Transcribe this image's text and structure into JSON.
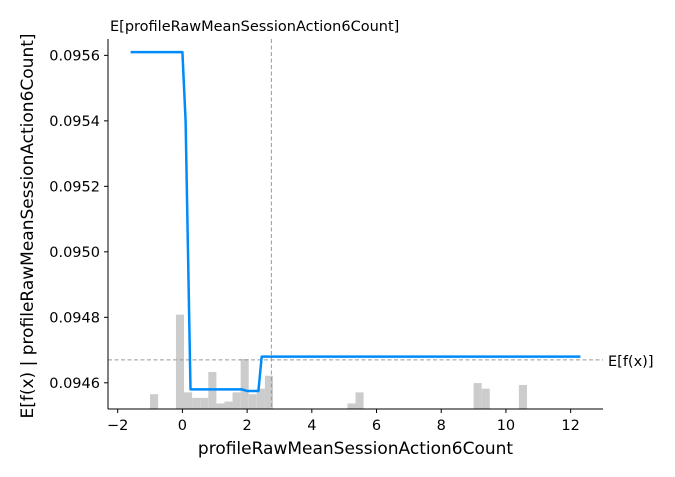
{
  "chart_data": {
    "type": "line",
    "xlabel": "profileRawMeanSessionAction6Count",
    "ylabel": "E[f(x) | profileRawMeanSessionAction6Count]",
    "xlim": [
      -2.3,
      13.0
    ],
    "ylim": [
      0.09452,
      0.09565
    ],
    "x_ticks": [
      -2,
      0,
      2,
      4,
      6,
      8,
      10,
      12
    ],
    "x_tick_labels": [
      "−2",
      "0",
      "2",
      "4",
      "6",
      "8",
      "10",
      "12"
    ],
    "y_ticks": [
      0.0946,
      0.0948,
      0.095,
      0.0952,
      0.0954,
      0.0956
    ],
    "y_tick_labels": [
      "0.0946",
      "0.0948",
      "0.0950",
      "0.0952",
      "0.0954",
      "0.0956"
    ],
    "series": [
      {
        "x": [
          -1.6,
          0.0,
          0.1,
          0.25,
          0.45,
          1.5,
          1.85,
          2.0,
          2.35,
          2.45,
          2.6,
          12.3
        ],
        "y": [
          0.09561,
          0.09561,
          0.0954,
          0.09458,
          0.09458,
          0.09458,
          0.09458,
          0.094575,
          0.094575,
          0.09468,
          0.09468,
          0.09468
        ],
        "color": "#008bfb"
      }
    ],
    "expected_value": {
      "label": "E[f(x)]",
      "y": 0.09467
    },
    "feature_mean": {
      "label": "E[profileRawMeanSessionAction6Count]",
      "x": 2.75
    },
    "histogram": {
      "color": "#cccccc",
      "bins": [
        {
          "x0": -1.0,
          "x1": -0.75,
          "h": 0.04
        },
        {
          "x0": -0.2,
          "x1": 0.05,
          "h": 0.255
        },
        {
          "x0": 0.05,
          "x1": 0.3,
          "h": 0.045
        },
        {
          "x0": 0.3,
          "x1": 0.55,
          "h": 0.03
        },
        {
          "x0": 0.55,
          "x1": 0.8,
          "h": 0.03
        },
        {
          "x0": 0.8,
          "x1": 1.05,
          "h": 0.1
        },
        {
          "x0": 1.05,
          "x1": 1.3,
          "h": 0.015
        },
        {
          "x0": 1.3,
          "x1": 1.55,
          "h": 0.02
        },
        {
          "x0": 1.55,
          "x1": 1.8,
          "h": 0.045
        },
        {
          "x0": 1.8,
          "x1": 2.05,
          "h": 0.135
        },
        {
          "x0": 2.05,
          "x1": 2.3,
          "h": 0.04
        },
        {
          "x0": 2.3,
          "x1": 2.55,
          "h": 0.055
        },
        {
          "x0": 2.55,
          "x1": 2.8,
          "h": 0.09
        },
        {
          "x0": 5.1,
          "x1": 5.35,
          "h": 0.015
        },
        {
          "x0": 5.35,
          "x1": 5.6,
          "h": 0.045
        },
        {
          "x0": 9.0,
          "x1": 9.25,
          "h": 0.07
        },
        {
          "x0": 9.25,
          "x1": 9.5,
          "h": 0.055
        },
        {
          "x0": 10.4,
          "x1": 10.65,
          "h": 0.065
        }
      ]
    }
  }
}
